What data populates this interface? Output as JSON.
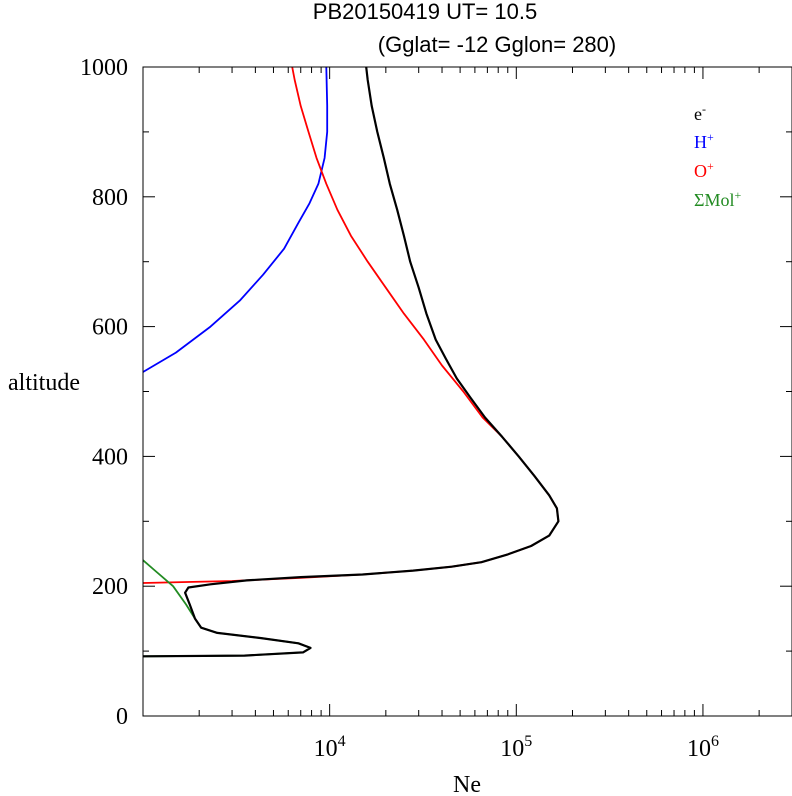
{
  "chart_data": {
    "type": "line",
    "title": "PB20150419   UT=  10.5",
    "subtitle": "(Gglat= -12   Gglon=  280)",
    "xlabel": "Ne",
    "ylabel": "altitude",
    "x_scale": "log",
    "xlim": [
      1000,
      3000000
    ],
    "ylim": [
      0,
      1000
    ],
    "x_ticks": [
      {
        "value": 10000,
        "base": "10",
        "exp": "4"
      },
      {
        "value": 100000,
        "base": "10",
        "exp": "5"
      },
      {
        "value": 1000000,
        "base": "10",
        "exp": "6"
      }
    ],
    "y_ticks": [
      0,
      200,
      400,
      600,
      800,
      1000
    ],
    "legend_position": "top-right",
    "series": [
      {
        "name": "e-",
        "label_base": "e",
        "label_sup": "-",
        "color": "#000000",
        "points": [
          [
            1000,
            92
          ],
          [
            3500,
            93
          ],
          [
            7200,
            98
          ],
          [
            7900,
            105
          ],
          [
            6800,
            112
          ],
          [
            4300,
            120
          ],
          [
            2500,
            128
          ],
          [
            2050,
            136
          ],
          [
            1900,
            150
          ],
          [
            1780,
            172
          ],
          [
            1680,
            190
          ],
          [
            1750,
            198
          ],
          [
            2300,
            203
          ],
          [
            3600,
            209
          ],
          [
            7000,
            214
          ],
          [
            15000,
            218
          ],
          [
            28000,
            224
          ],
          [
            45000,
            230
          ],
          [
            65000,
            237
          ],
          [
            90000,
            249
          ],
          [
            120000,
            262
          ],
          [
            150000,
            278
          ],
          [
            168000,
            300
          ],
          [
            165000,
            320
          ],
          [
            150000,
            340
          ],
          [
            125000,
            370
          ],
          [
            103000,
            400
          ],
          [
            84000,
            430
          ],
          [
            68000,
            460
          ],
          [
            57000,
            490
          ],
          [
            48000,
            520
          ],
          [
            42000,
            550
          ],
          [
            37000,
            580
          ],
          [
            33000,
            620
          ],
          [
            30000,
            660
          ],
          [
            27000,
            700
          ],
          [
            25000,
            740
          ],
          [
            23000,
            780
          ],
          [
            21000,
            820
          ],
          [
            19500,
            860
          ],
          [
            18000,
            900
          ],
          [
            16800,
            940
          ],
          [
            16000,
            980
          ],
          [
            15700,
            1000
          ]
        ]
      },
      {
        "name": "H+",
        "label_base": "H",
        "label_sup": "+",
        "color": "#0000ff",
        "points": [
          [
            1000,
            530
          ],
          [
            1500,
            560
          ],
          [
            2300,
            600
          ],
          [
            3300,
            640
          ],
          [
            4400,
            680
          ],
          [
            5700,
            720
          ],
          [
            6800,
            760
          ],
          [
            7800,
            790
          ],
          [
            8700,
            820
          ],
          [
            9400,
            860
          ],
          [
            9700,
            900
          ],
          [
            9700,
            940
          ],
          [
            9600,
            1000
          ]
        ]
      },
      {
        "name": "O+",
        "label_base": "O",
        "label_sup": "+",
        "color": "#ff0000",
        "points": [
          [
            1000,
            205
          ],
          [
            3000,
            208
          ],
          [
            7000,
            213
          ],
          [
            15000,
            218
          ],
          [
            28000,
            224
          ],
          [
            45000,
            230
          ],
          [
            65000,
            237
          ],
          [
            90000,
            249
          ],
          [
            120000,
            262
          ],
          [
            150000,
            278
          ],
          [
            168000,
            300
          ],
          [
            165000,
            320
          ],
          [
            150000,
            340
          ],
          [
            125000,
            370
          ],
          [
            103000,
            400
          ],
          [
            84000,
            430
          ],
          [
            66000,
            460
          ],
          [
            52000,
            500
          ],
          [
            40000,
            540
          ],
          [
            32000,
            580
          ],
          [
            25000,
            620
          ],
          [
            20000,
            660
          ],
          [
            16000,
            700
          ],
          [
            13000,
            740
          ],
          [
            11000,
            780
          ],
          [
            9600,
            820
          ],
          [
            8500,
            860
          ],
          [
            7700,
            900
          ],
          [
            7000,
            940
          ],
          [
            6500,
            980
          ],
          [
            6300,
            1000
          ]
        ]
      },
      {
        "name": "ΣMol+",
        "label_base": "ΣMol",
        "label_sup": "+",
        "color": "#228b22",
        "points": [
          [
            1000,
            92
          ],
          [
            3500,
            93
          ],
          [
            7200,
            98
          ],
          [
            7900,
            105
          ],
          [
            6800,
            112
          ],
          [
            4300,
            120
          ],
          [
            2500,
            128
          ],
          [
            2050,
            136
          ],
          [
            1900,
            150
          ],
          [
            1700,
            172
          ],
          [
            1450,
            200
          ],
          [
            1150,
            225
          ],
          [
            1000,
            240
          ]
        ]
      }
    ]
  }
}
